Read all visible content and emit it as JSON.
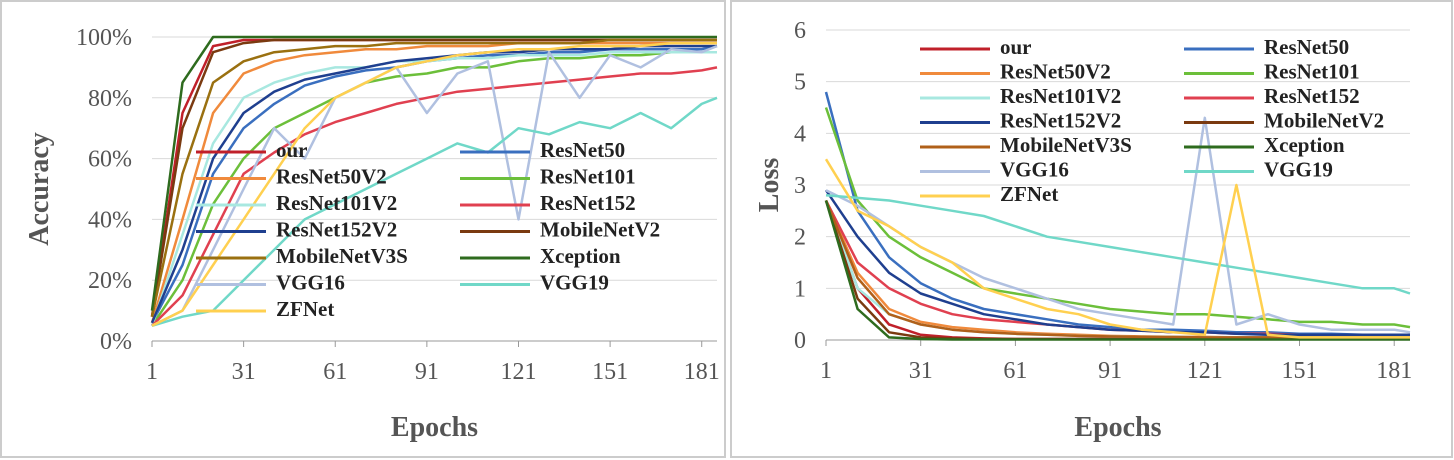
{
  "chart_data": [
    {
      "type": "line",
      "y_label": "Accuracy",
      "x_label": "Epochs",
      "x": [
        1,
        11,
        21,
        31,
        41,
        51,
        61,
        71,
        81,
        91,
        101,
        111,
        121,
        131,
        141,
        151,
        161,
        171,
        181,
        186
      ],
      "xlim": [
        1,
        186
      ],
      "xticks": [
        1,
        31,
        61,
        91,
        121,
        151,
        181
      ],
      "ylim": [
        0,
        100
      ],
      "yticks": [
        {
          "value": 0,
          "label": "0%"
        },
        {
          "value": 20,
          "label": "20%"
        },
        {
          "value": 40,
          "label": "40%"
        },
        {
          "value": 60,
          "label": "60%"
        },
        {
          "value": 80,
          "label": "80%"
        },
        {
          "value": 100,
          "label": "100%"
        }
      ],
      "grid": true,
      "legend": "center",
      "series": [
        {
          "name": "our",
          "color": "#c0202a",
          "values": [
            8,
            75,
            97,
            99,
            99,
            99,
            99,
            99,
            99,
            99,
            99,
            99,
            99,
            99,
            99,
            99,
            99,
            99,
            99,
            99
          ]
        },
        {
          "name": "ResNet50",
          "color": "#3a6fbf",
          "values": [
            6,
            25,
            55,
            70,
            78,
            84,
            87,
            89,
            90,
            92,
            93,
            94,
            94,
            95,
            95,
            96,
            96,
            96,
            96,
            97
          ]
        },
        {
          "name": "ResNet50V2",
          "color": "#f08a3c",
          "values": [
            6,
            40,
            75,
            88,
            92,
            94,
            95,
            96,
            96,
            97,
            97,
            97,
            98,
            98,
            98,
            98,
            98,
            98,
            98,
            98
          ]
        },
        {
          "name": "ResNet101",
          "color": "#6cbf3a",
          "values": [
            5,
            20,
            45,
            60,
            70,
            75,
            80,
            85,
            87,
            88,
            90,
            90,
            92,
            93,
            93,
            94,
            94,
            95,
            95,
            95
          ]
        },
        {
          "name": "ResNet101V2",
          "color": "#a8e8e0",
          "values": [
            5,
            35,
            65,
            80,
            85,
            88,
            90,
            90,
            92,
            92,
            93,
            93,
            94,
            94,
            94,
            95,
            95,
            95,
            95,
            95
          ]
        },
        {
          "name": "ResNet152",
          "color": "#e04050",
          "values": [
            5,
            15,
            35,
            55,
            62,
            68,
            72,
            75,
            78,
            80,
            82,
            83,
            84,
            85,
            86,
            87,
            88,
            88,
            89,
            90
          ]
        },
        {
          "name": "ResNet152V2",
          "color": "#1f3f8f",
          "values": [
            6,
            30,
            60,
            75,
            82,
            86,
            88,
            90,
            92,
            93,
            94,
            95,
            95,
            96,
            96,
            96,
            97,
            97,
            97,
            97
          ]
        },
        {
          "name": "MobileNetV2",
          "color": "#7a3a10",
          "values": [
            8,
            70,
            95,
            98,
            99,
            99,
            99,
            99,
            99,
            99,
            99,
            99,
            99,
            99,
            99,
            99,
            99,
            99,
            99,
            99
          ]
        },
        {
          "name": "MobileNetV3S",
          "color": "#9a7010",
          "values": [
            8,
            55,
            85,
            92,
            95,
            96,
            97,
            97,
            98,
            98,
            98,
            98,
            98,
            98,
            98,
            99,
            99,
            99,
            99,
            99
          ]
        },
        {
          "name": "Xception",
          "color": "#2e6b1e",
          "values": [
            10,
            85,
            100,
            100,
            100,
            100,
            100,
            100,
            100,
            100,
            100,
            100,
            100,
            100,
            100,
            100,
            100,
            100,
            100,
            100
          ]
        },
        {
          "name": "VGG16",
          "color": "#b0c0e0",
          "values": [
            5,
            10,
            30,
            50,
            70,
            60,
            80,
            85,
            90,
            75,
            88,
            92,
            40,
            95,
            80,
            94,
            90,
            96,
            95,
            97
          ]
        },
        {
          "name": "VGG19",
          "color": "#70d8c8",
          "values": [
            5,
            8,
            10,
            20,
            30,
            40,
            45,
            50,
            55,
            60,
            65,
            62,
            70,
            68,
            72,
            70,
            75,
            70,
            78,
            80
          ]
        },
        {
          "name": "ZFNet",
          "color": "#ffd050",
          "values": [
            5,
            10,
            25,
            40,
            55,
            70,
            80,
            85,
            90,
            92,
            94,
            95,
            96,
            96,
            97,
            97,
            97,
            98,
            98,
            98
          ]
        }
      ]
    },
    {
      "type": "line",
      "y_label": "Loss",
      "x_label": "Epochs",
      "x": [
        1,
        11,
        21,
        31,
        41,
        51,
        61,
        71,
        81,
        91,
        101,
        111,
        121,
        131,
        141,
        151,
        161,
        171,
        181,
        186
      ],
      "xlim": [
        1,
        186
      ],
      "xticks": [
        1,
        31,
        61,
        91,
        121,
        151,
        181
      ],
      "ylim": [
        0,
        6
      ],
      "yticks": [
        0,
        1,
        2,
        3,
        4,
        5,
        6
      ],
      "grid": true,
      "legend": "top",
      "series": [
        {
          "name": "our",
          "color": "#c0202a",
          "values": [
            2.7,
            1.0,
            0.3,
            0.1,
            0.05,
            0.03,
            0.02,
            0.02,
            0.02,
            0.02,
            0.02,
            0.02,
            0.02,
            0.02,
            0.02,
            0.02,
            0.02,
            0.02,
            0.02,
            0.02
          ]
        },
        {
          "name": "ResNet50",
          "color": "#3a6fbf",
          "values": [
            4.8,
            2.5,
            1.6,
            1.1,
            0.8,
            0.6,
            0.5,
            0.4,
            0.3,
            0.25,
            0.2,
            0.2,
            0.18,
            0.15,
            0.15,
            0.12,
            0.12,
            0.1,
            0.1,
            0.1
          ]
        },
        {
          "name": "ResNet50V2",
          "color": "#f08a3c",
          "values": [
            2.7,
            1.3,
            0.6,
            0.35,
            0.25,
            0.2,
            0.15,
            0.12,
            0.1,
            0.08,
            0.07,
            0.06,
            0.06,
            0.05,
            0.05,
            0.05,
            0.05,
            0.05,
            0.05,
            0.05
          ]
        },
        {
          "name": "ResNet101",
          "color": "#6cbf3a",
          "values": [
            4.5,
            2.7,
            2.0,
            1.6,
            1.3,
            1.0,
            0.9,
            0.8,
            0.7,
            0.6,
            0.55,
            0.5,
            0.5,
            0.45,
            0.4,
            0.35,
            0.35,
            0.3,
            0.3,
            0.25
          ]
        },
        {
          "name": "ResNet101V2",
          "color": "#a8e8e0",
          "values": [
            2.7,
            1.0,
            0.5,
            0.3,
            0.2,
            0.15,
            0.12,
            0.1,
            0.08,
            0.07,
            0.06,
            0.06,
            0.05,
            0.05,
            0.05,
            0.05,
            0.05,
            0.05,
            0.05,
            0.05
          ]
        },
        {
          "name": "ResNet152",
          "color": "#e04050",
          "values": [
            2.7,
            1.5,
            1.0,
            0.7,
            0.5,
            0.4,
            0.35,
            0.3,
            0.25,
            0.2,
            0.18,
            0.15,
            0.15,
            0.12,
            0.12,
            0.1,
            0.1,
            0.1,
            0.1,
            0.1
          ]
        },
        {
          "name": "ResNet152V2",
          "color": "#1f3f8f",
          "values": [
            2.9,
            2.0,
            1.3,
            0.9,
            0.7,
            0.5,
            0.4,
            0.3,
            0.25,
            0.2,
            0.18,
            0.15,
            0.15,
            0.12,
            0.1,
            0.1,
            0.1,
            0.1,
            0.1,
            0.1
          ]
        },
        {
          "name": "MobileNetV2",
          "color": "#7a3a10",
          "values": [
            2.7,
            0.8,
            0.15,
            0.05,
            0.03,
            0.02,
            0.02,
            0.02,
            0.02,
            0.02,
            0.02,
            0.02,
            0.02,
            0.02,
            0.02,
            0.02,
            0.02,
            0.02,
            0.02,
            0.02
          ]
        },
        {
          "name": "MobileNetV3S",
          "color": "#b0601a",
          "values": [
            2.7,
            1.2,
            0.5,
            0.3,
            0.2,
            0.15,
            0.12,
            0.1,
            0.08,
            0.07,
            0.06,
            0.06,
            0.05,
            0.05,
            0.05,
            0.05,
            0.05,
            0.05,
            0.05,
            0.05
          ]
        },
        {
          "name": "Xception",
          "color": "#2e6b1e",
          "values": [
            2.7,
            0.6,
            0.05,
            0.02,
            0.01,
            0.01,
            0.01,
            0.01,
            0.01,
            0.01,
            0.01,
            0.01,
            0.01,
            0.01,
            0.01,
            0.01,
            0.01,
            0.01,
            0.01,
            0.01
          ]
        },
        {
          "name": "VGG16",
          "color": "#b0c0e0",
          "values": [
            2.9,
            2.6,
            2.2,
            1.8,
            1.5,
            1.2,
            1.0,
            0.8,
            0.6,
            0.5,
            0.4,
            0.3,
            4.3,
            0.3,
            0.5,
            0.3,
            0.2,
            0.2,
            0.2,
            0.15
          ]
        },
        {
          "name": "VGG19",
          "color": "#70d8c8",
          "values": [
            2.8,
            2.75,
            2.7,
            2.6,
            2.5,
            2.4,
            2.2,
            2.0,
            1.9,
            1.8,
            1.7,
            1.6,
            1.5,
            1.4,
            1.3,
            1.2,
            1.1,
            1.0,
            1.0,
            0.9
          ]
        },
        {
          "name": "ZFNet",
          "color": "#ffd050",
          "values": [
            3.5,
            2.5,
            2.2,
            1.8,
            1.5,
            1.0,
            0.8,
            0.6,
            0.5,
            0.3,
            0.2,
            0.15,
            0.1,
            3.0,
            0.1,
            0.05,
            0.05,
            0.05,
            0.05,
            0.05
          ]
        }
      ]
    }
  ]
}
